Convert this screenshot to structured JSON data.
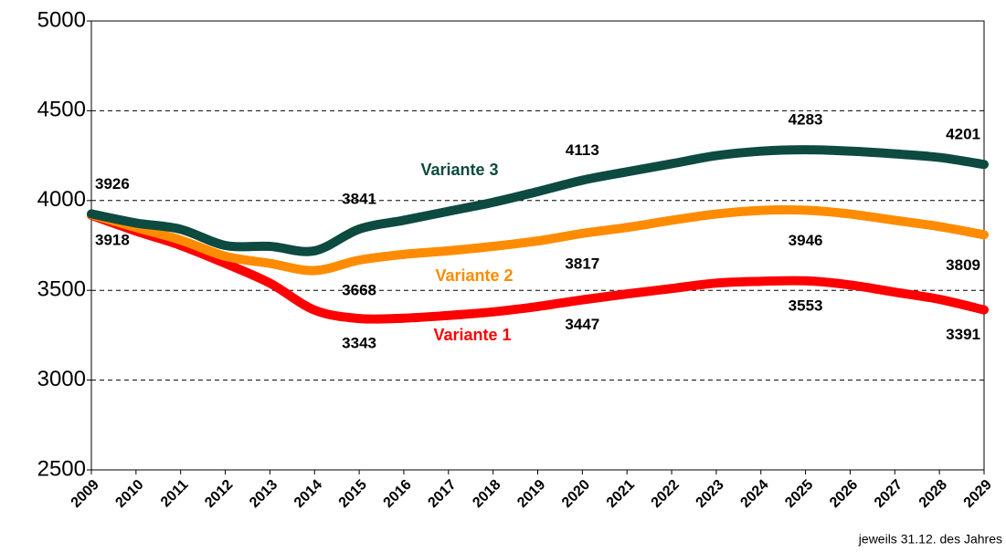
{
  "chart_data": {
    "type": "line",
    "note": "jeweils 31.12. des Jahres",
    "categories": [
      "2009",
      "2010",
      "2011",
      "2012",
      "2013",
      "2014",
      "2015",
      "2016",
      "2017",
      "2018",
      "2019",
      "2020",
      "2021",
      "2022",
      "2023",
      "2024",
      "2025",
      "2026",
      "2027",
      "2028",
      "2029"
    ],
    "ylim": [
      2500,
      5000
    ],
    "yticks": [
      2500,
      3000,
      3500,
      4000,
      4500,
      5000
    ],
    "grid": true,
    "series": [
      {
        "name": "Variante 1",
        "color": "#ff0000",
        "values": [
          3918,
          3830,
          3750,
          3650,
          3540,
          3390,
          3343,
          3345,
          3360,
          3380,
          3410,
          3447,
          3480,
          3510,
          3540,
          3550,
          3553,
          3530,
          3490,
          3450,
          3391
        ],
        "value_labels": [
          "3918",
          null,
          null,
          null,
          null,
          null,
          "3343",
          null,
          null,
          null,
          null,
          "3447",
          null,
          null,
          null,
          null,
          "3553",
          null,
          null,
          null,
          "3391"
        ]
      },
      {
        "name": "Variante 2",
        "color": "#ff8c00",
        "values": [
          3922,
          3850,
          3780,
          3690,
          3650,
          3610,
          3668,
          3700,
          3720,
          3745,
          3775,
          3817,
          3850,
          3890,
          3925,
          3945,
          3946,
          3925,
          3890,
          3855,
          3809
        ],
        "value_labels": [
          null,
          null,
          null,
          null,
          null,
          null,
          "3668",
          null,
          null,
          null,
          null,
          "3817",
          null,
          null,
          null,
          null,
          "3946",
          null,
          null,
          null,
          "3809"
        ]
      },
      {
        "name": "Variante 3",
        "color": "#0d4a3f",
        "values": [
          3926,
          3875,
          3840,
          3750,
          3745,
          3720,
          3841,
          3890,
          3940,
          3990,
          4050,
          4113,
          4160,
          4205,
          4250,
          4275,
          4283,
          4275,
          4260,
          4240,
          4201
        ],
        "value_labels": [
          "3926",
          null,
          null,
          null,
          null,
          null,
          "3841",
          null,
          null,
          null,
          null,
          "4113",
          null,
          null,
          null,
          null,
          "4283",
          null,
          null,
          null,
          "4201"
        ]
      }
    ]
  }
}
